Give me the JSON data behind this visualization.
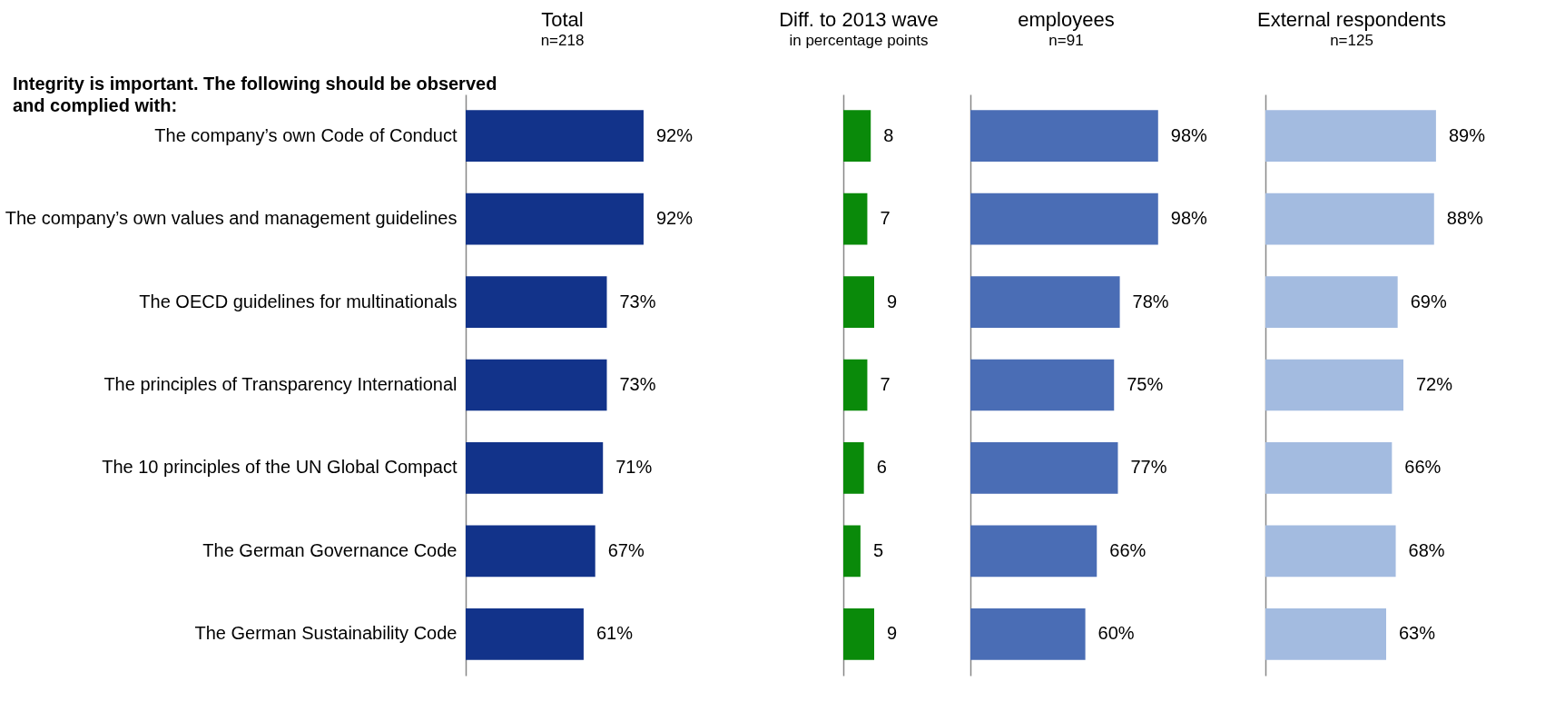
{
  "chart_data": [
    {
      "type": "bar",
      "orientation": "horizontal",
      "title": "Total",
      "subtitle": "n=218",
      "annotations": [
        "Integrity is important. The following should be observed and complied with:"
      ],
      "categories": [
        "The company’s own Code of Conduct",
        "The company’s own values and management guidelines",
        "The OECD guidelines for multinationals",
        "The principles of Transparency International",
        "The 10 principles of the UN Global Compact",
        "The German Governance Code",
        "The German Sustainability Code"
      ],
      "values": [
        92,
        92,
        73,
        73,
        71,
        67,
        61
      ],
      "value_labels": [
        "92%",
        "92%",
        "73%",
        "73%",
        "71%",
        "67%",
        "61%"
      ],
      "color": "#12338a",
      "tick_labels": "y"
    },
    {
      "type": "bar",
      "orientation": "horizontal",
      "title": "Diff. to 2013 wave",
      "subtitle": "in percentage points",
      "categories": [
        null,
        null,
        null,
        null,
        null,
        null,
        null
      ],
      "values": [
        8,
        7,
        9,
        7,
        6,
        5,
        9
      ],
      "data_labels": true,
      "color": "#0a8a0a",
      "tick_labels": false
    },
    {
      "type": "bar",
      "orientation": "horizontal",
      "title": "employees",
      "subtitle": "n=91",
      "categories": [
        null,
        null,
        null,
        null,
        null,
        null,
        null
      ],
      "values": [
        98,
        98,
        78,
        75,
        77,
        66,
        60
      ],
      "value_labels": [
        "98%",
        "98%",
        "78%",
        "75%",
        "77%",
        "66%",
        "60%"
      ],
      "color": "#4a6db5",
      "tick_labels": false
    },
    {
      "type": "bar",
      "orientation": "horizontal",
      "title": "External respondents",
      "subtitle": "n=125",
      "categories": [
        null,
        null,
        null,
        null,
        null,
        null,
        null
      ],
      "values": [
        89,
        88,
        69,
        72,
        66,
        68,
        63
      ],
      "value_labels": [
        "89%",
        "88%",
        "69%",
        "72%",
        "66%",
        "68%",
        "63%"
      ],
      "color": "#a3bbe0",
      "tick_labels": false
    }
  ]
}
